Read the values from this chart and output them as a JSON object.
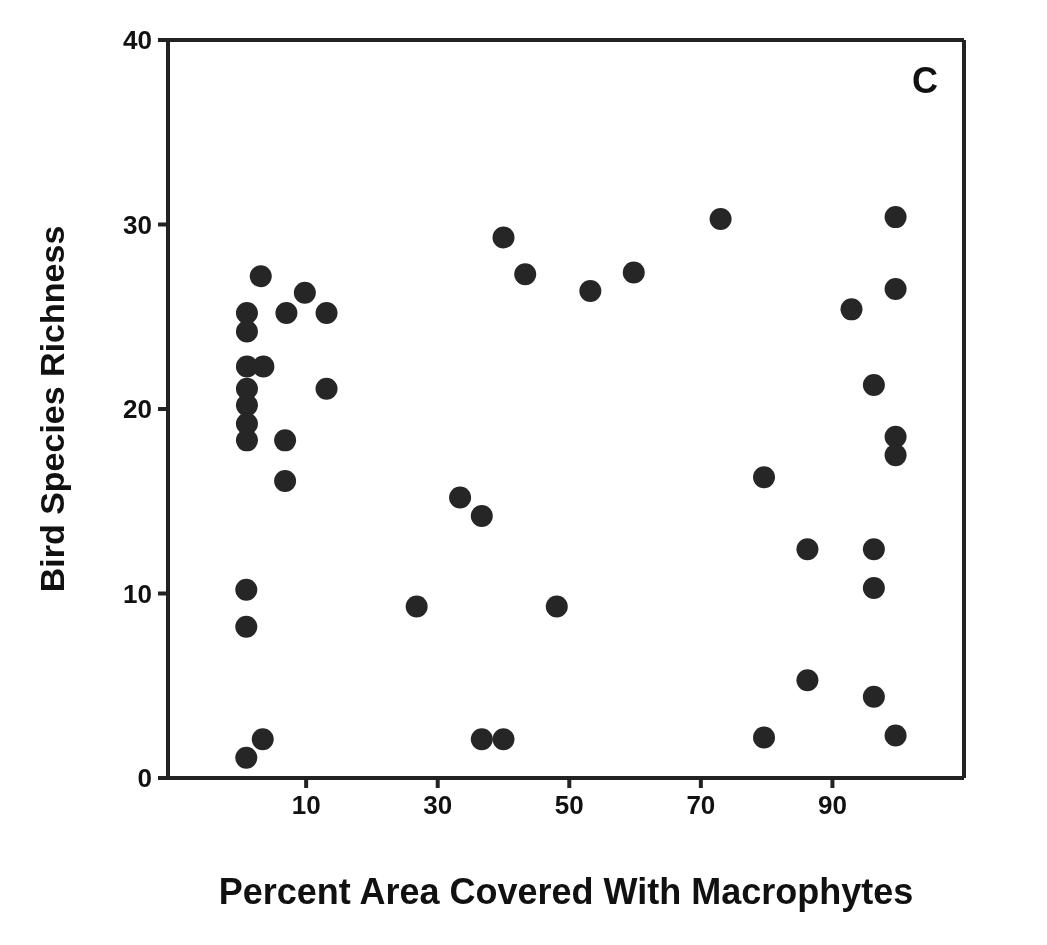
{
  "chart_data": {
    "type": "scatter",
    "xlabel": "Percent Area Covered With Macrophytes",
    "ylabel": "Bird Species Richness",
    "annotations": [
      "C"
    ],
    "x": [
      40.0,
      43.3,
      3.1,
      9.8,
      1.0,
      7.0,
      13.1,
      1.0,
      1.0,
      3.5,
      13.1,
      1.0,
      1.0,
      1.0,
      1.0,
      6.8,
      6.8,
      33.4,
      36.7,
      0.9,
      0.9,
      26.8,
      48.1,
      3.4,
      0.9,
      36.7,
      40.0,
      73.0,
      99.6,
      53.2,
      59.8,
      99.6,
      92.9,
      96.3,
      99.6,
      99.6,
      79.6,
      86.2,
      96.3,
      96.3,
      86.2,
      96.3,
      79.6,
      99.6
    ],
    "values": [
      29.3,
      27.3,
      27.2,
      26.3,
      25.2,
      25.2,
      25.2,
      24.2,
      22.3,
      22.3,
      21.1,
      21.1,
      20.2,
      19.2,
      18.3,
      18.3,
      16.1,
      15.2,
      14.2,
      10.2,
      8.2,
      9.3,
      9.3,
      2.1,
      1.1,
      2.1,
      2.1,
      30.3,
      30.4,
      26.4,
      27.4,
      26.5,
      25.4,
      21.3,
      18.5,
      17.5,
      16.3,
      12.4,
      12.4,
      10.3,
      5.3,
      4.4,
      2.2,
      2.3
    ],
    "color": "#262626",
    "marker": "circle",
    "xlim": [
      -11,
      110
    ],
    "xticks": [
      10,
      30,
      50,
      70,
      90
    ],
    "ylim": [
      0,
      40
    ],
    "yticks": [
      0,
      10,
      20,
      30,
      40
    ],
    "grid": false,
    "legend": false
  }
}
